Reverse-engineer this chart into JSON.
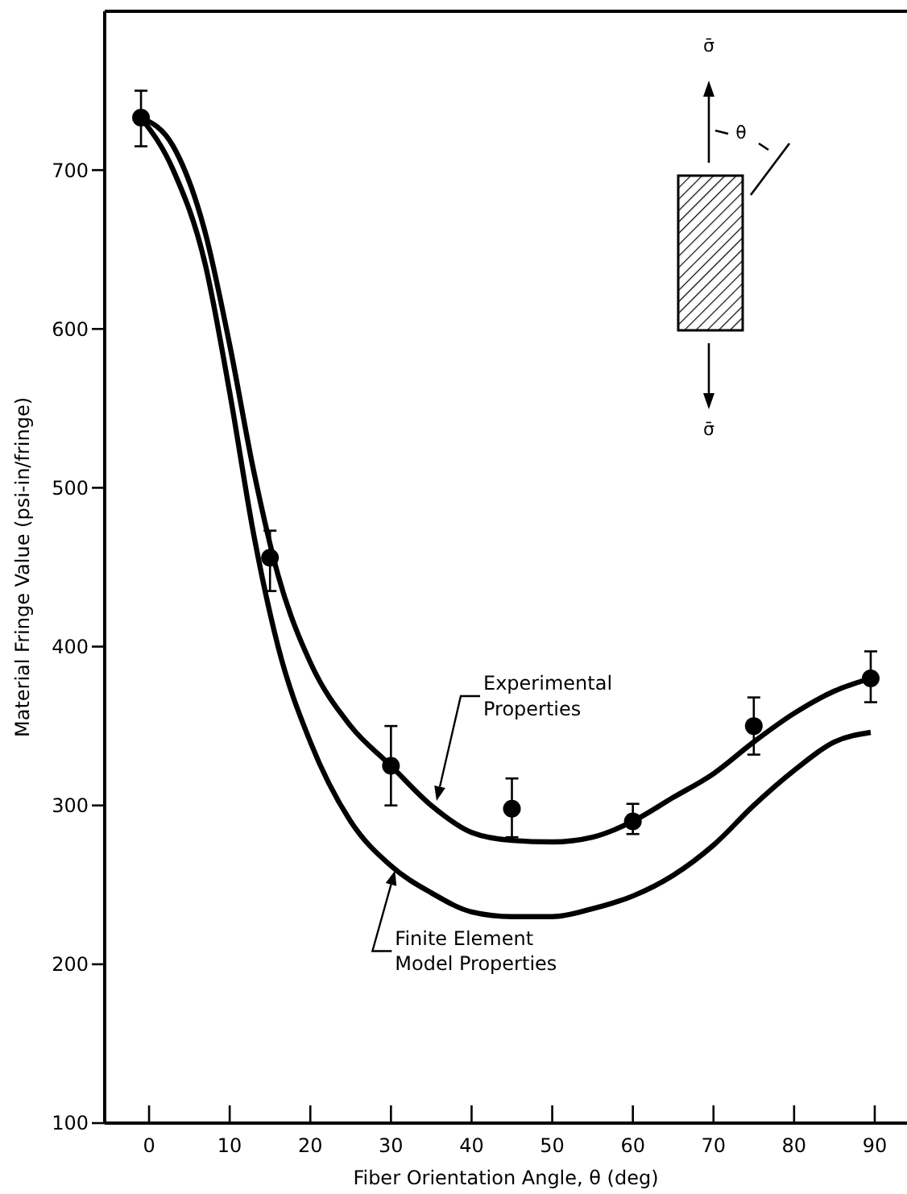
{
  "chart_data": {
    "type": "line",
    "xlabel": "Fiber Orientation Angle, θ (deg)",
    "ylabel": "Material Fringe Value (psi-in/fringe)",
    "xlim": [
      -5.5,
      94
    ],
    "ylim": [
      100,
      800
    ],
    "xticks": [
      0,
      10,
      20,
      30,
      40,
      50,
      60,
      70,
      80,
      90
    ],
    "yticks": [
      100,
      200,
      300,
      400,
      500,
      600,
      700
    ],
    "grid": false,
    "series": [
      {
        "type": "scatter",
        "color": "#000000",
        "marker": "circle",
        "x": [
          -1,
          15,
          30,
          45,
          60,
          75,
          89.5
        ],
        "values": [
          733,
          456,
          325,
          298,
          290,
          350,
          380
        ],
        "errors": [
          [
            715,
            750
          ],
          [
            435,
            473
          ],
          [
            300,
            350
          ],
          [
            280,
            317
          ],
          [
            282,
            301
          ],
          [
            332,
            368
          ],
          [
            365,
            397
          ]
        ]
      },
      {
        "type": "line",
        "color": "#000000",
        "line_style": "solid",
        "x": [
          -1,
          3,
          7,
          10,
          13,
          16,
          20,
          25,
          30,
          35,
          40,
          45,
          50,
          55,
          60,
          65,
          70,
          75,
          80,
          85,
          89.5
        ],
        "values": [
          733,
          715,
          660,
          590,
          510,
          445,
          390,
          350,
          325,
          300,
          283,
          278,
          277,
          280,
          290,
          305,
          320,
          340,
          358,
          372,
          380
        ]
      },
      {
        "type": "line",
        "color": "#000000",
        "line_style": "solid",
        "x": [
          -1,
          3,
          7,
          10,
          13,
          16,
          20,
          25,
          30,
          35,
          40,
          45,
          50,
          55,
          60,
          65,
          70,
          75,
          80,
          85,
          89.5
        ],
        "values": [
          733,
          700,
          640,
          560,
          470,
          400,
          340,
          290,
          262,
          245,
          233,
          230,
          230,
          235,
          243,
          256,
          275,
          300,
          322,
          340,
          346
        ]
      }
    ],
    "annotations": [
      "Experimental\nProperties",
      {
        "text": "Finite Element\nModel Properties",
        "x": 30.5,
        "y": 259
      },
      "σ̄",
      "θ",
      "σ̄"
    ]
  }
}
